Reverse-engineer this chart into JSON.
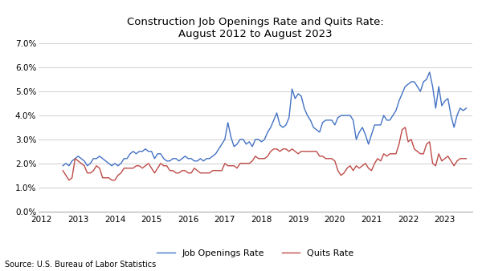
{
  "title": "Construction Job Openings Rate and Quits Rate:\nAugust 2012 to August 2023",
  "source": "Source: U.S. Bureau of Labor Statistics",
  "ylim": [
    0.0,
    0.07
  ],
  "yticks": [
    0.0,
    0.01,
    0.02,
    0.03,
    0.04,
    0.05,
    0.06,
    0.07
  ],
  "xticks": [
    2012,
    2013,
    2014,
    2015,
    2016,
    2017,
    2018,
    2019,
    2020,
    2021,
    2022,
    2023
  ],
  "xlim": [
    2011.92,
    2023.75
  ],
  "job_openings_color": "#4472C4",
  "quits_color": "#BE4B48",
  "legend_labels": [
    "Job Openings Rate",
    "Quits Rate"
  ],
  "job_openings_rate": [
    0.019,
    0.02,
    0.019,
    0.021,
    0.022,
    0.023,
    0.022,
    0.021,
    0.019,
    0.02,
    0.022,
    0.022,
    0.023,
    0.022,
    0.021,
    0.02,
    0.019,
    0.02,
    0.019,
    0.02,
    0.022,
    0.022,
    0.024,
    0.025,
    0.024,
    0.025,
    0.025,
    0.026,
    0.025,
    0.025,
    0.022,
    0.024,
    0.024,
    0.022,
    0.021,
    0.021,
    0.022,
    0.022,
    0.021,
    0.022,
    0.023,
    0.022,
    0.022,
    0.021,
    0.021,
    0.022,
    0.021,
    0.022,
    0.022,
    0.023,
    0.024,
    0.026,
    0.028,
    0.03,
    0.037,
    0.031,
    0.027,
    0.028,
    0.03,
    0.03,
    0.028,
    0.029,
    0.027,
    0.03,
    0.03,
    0.029,
    0.03,
    0.033,
    0.035,
    0.038,
    0.041,
    0.036,
    0.035,
    0.036,
    0.039,
    0.051,
    0.047,
    0.049,
    0.048,
    0.043,
    0.04,
    0.038,
    0.035,
    0.034,
    0.033,
    0.037,
    0.038,
    0.038,
    0.038,
    0.036,
    0.039,
    0.04,
    0.04,
    0.04,
    0.04,
    0.038,
    0.03,
    0.033,
    0.035,
    0.032,
    0.028,
    0.032,
    0.036,
    0.036,
    0.036,
    0.04,
    0.038,
    0.038,
    0.04,
    0.042,
    0.046,
    0.049,
    0.052,
    0.053,
    0.054,
    0.054,
    0.052,
    0.05,
    0.054,
    0.055,
    0.058,
    0.052,
    0.043,
    0.052,
    0.044,
    0.046,
    0.047,
    0.04,
    0.035,
    0.04,
    0.043,
    0.042,
    0.043
  ],
  "quits_rate": [
    0.017,
    0.015,
    0.013,
    0.014,
    0.022,
    0.021,
    0.02,
    0.019,
    0.016,
    0.016,
    0.017,
    0.019,
    0.018,
    0.014,
    0.014,
    0.014,
    0.013,
    0.013,
    0.015,
    0.016,
    0.018,
    0.018,
    0.018,
    0.018,
    0.019,
    0.019,
    0.018,
    0.019,
    0.02,
    0.018,
    0.016,
    0.018,
    0.02,
    0.019,
    0.019,
    0.017,
    0.017,
    0.016,
    0.016,
    0.017,
    0.017,
    0.016,
    0.016,
    0.018,
    0.017,
    0.016,
    0.016,
    0.016,
    0.016,
    0.017,
    0.017,
    0.017,
    0.017,
    0.02,
    0.019,
    0.019,
    0.019,
    0.018,
    0.02,
    0.02,
    0.02,
    0.02,
    0.021,
    0.023,
    0.022,
    0.022,
    0.022,
    0.023,
    0.025,
    0.026,
    0.026,
    0.025,
    0.026,
    0.026,
    0.025,
    0.026,
    0.025,
    0.024,
    0.025,
    0.025,
    0.025,
    0.025,
    0.025,
    0.025,
    0.023,
    0.023,
    0.022,
    0.022,
    0.022,
    0.021,
    0.017,
    0.015,
    0.016,
    0.018,
    0.019,
    0.017,
    0.019,
    0.018,
    0.019,
    0.02,
    0.018,
    0.017,
    0.02,
    0.022,
    0.021,
    0.024,
    0.023,
    0.024,
    0.024,
    0.024,
    0.028,
    0.034,
    0.035,
    0.029,
    0.03,
    0.026,
    0.025,
    0.024,
    0.024,
    0.028,
    0.029,
    0.02,
    0.019,
    0.024,
    0.021,
    0.022,
    0.023,
    0.021,
    0.019,
    0.021,
    0.022,
    0.022,
    0.022
  ]
}
